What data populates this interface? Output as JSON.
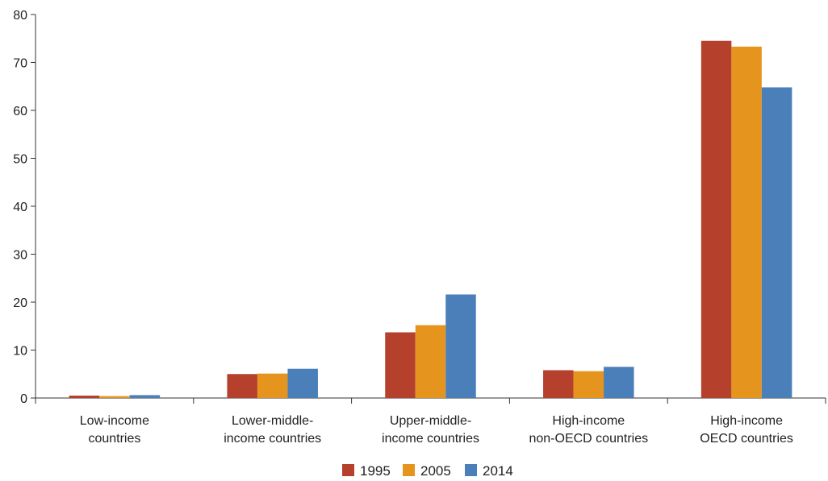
{
  "chart_data": {
    "type": "bar",
    "title": "",
    "xlabel": "",
    "ylabel": "",
    "ylim": [
      0,
      80
    ],
    "yticks": [
      0,
      10,
      20,
      30,
      40,
      50,
      60,
      70,
      80
    ],
    "grid": false,
    "legend_position": "bottom-center",
    "categories": [
      [
        "Low-income",
        "countries"
      ],
      [
        "Lower-middle-",
        "income countries"
      ],
      [
        "Upper-middle-",
        "income countries"
      ],
      [
        "High-income",
        "non-OECD countries"
      ],
      [
        "High-income",
        "OECD countries"
      ]
    ],
    "series": [
      {
        "name": "1995",
        "color": "#b5402c",
        "values": [
          0.5,
          5.0,
          13.7,
          5.8,
          74.5
        ]
      },
      {
        "name": "2005",
        "color": "#e5951e",
        "values": [
          0.4,
          5.1,
          15.2,
          5.6,
          73.3
        ]
      },
      {
        "name": "2014",
        "color": "#4a7fb9",
        "values": [
          0.6,
          6.1,
          21.6,
          6.5,
          64.8
        ]
      }
    ]
  }
}
